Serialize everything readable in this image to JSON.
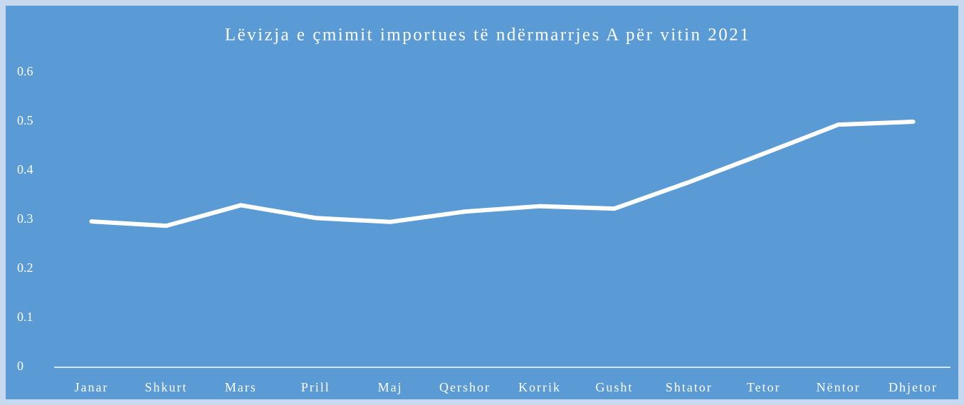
{
  "chart_data": {
    "type": "line",
    "title": "Lëvizja e çmimit importues të ndërmarrjes A për vitin 2021",
    "categories": [
      "Janar",
      "Shkurt",
      "Mars",
      "Prill",
      "Maj",
      "Qershor",
      "Korrik",
      "Gusht",
      "Shtator",
      "Tetor",
      "Nëntor",
      "Dhjetor"
    ],
    "values": [
      0.297,
      0.288,
      0.33,
      0.304,
      0.296,
      0.317,
      0.328,
      0.323,
      0.377,
      0.435,
      0.494,
      0.5
    ],
    "color": "#ffffff",
    "ylim": [
      0,
      0.6
    ],
    "yticks": [
      0,
      0.1,
      0.2,
      0.3,
      0.4,
      0.5,
      0.6
    ],
    "grid": false,
    "drop_lines": true
  }
}
